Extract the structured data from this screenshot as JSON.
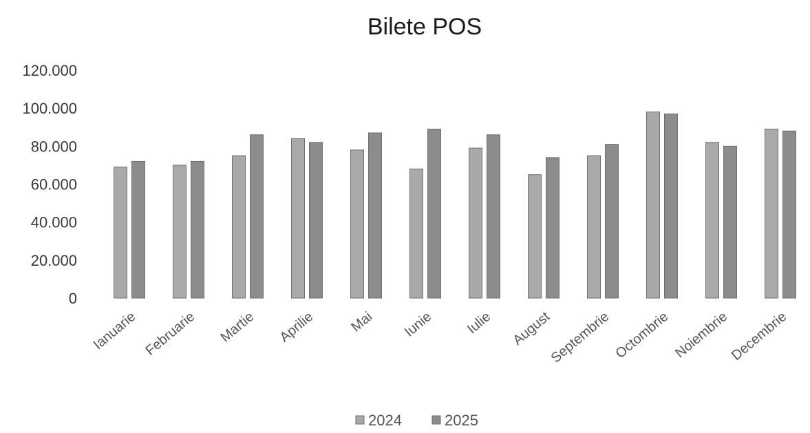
{
  "chart_data": {
    "type": "bar",
    "title": "Bilete POS",
    "xlabel": "",
    "ylabel": "",
    "ylim": [
      0,
      120000
    ],
    "yticks": [
      "0",
      "20.000",
      "40.000",
      "60.000",
      "80.000",
      "100.000",
      "120.000"
    ],
    "ytick_values": [
      0,
      20000,
      40000,
      60000,
      80000,
      100000,
      120000
    ],
    "grid": false,
    "legend_position": "bottom",
    "categories": [
      "Ianuarie",
      "Februarie",
      "Martie",
      "Aprilie",
      "Mai",
      "Iunie",
      "Iulie",
      "August",
      "Septembrie",
      "Octombrie",
      "Noiembrie",
      "Decembrie"
    ],
    "series": [
      {
        "name": "2024",
        "color": "#a9a9a9",
        "values": [
          69000,
          70000,
          75000,
          84000,
          78000,
          68000,
          79000,
          65000,
          75000,
          98000,
          82000,
          89000
        ]
      },
      {
        "name": "2025",
        "color": "#8c8c8c",
        "values": [
          72000,
          72000,
          86000,
          82000,
          87000,
          89000,
          86000,
          74000,
          81000,
          97000,
          80000,
          88000
        ]
      }
    ]
  }
}
